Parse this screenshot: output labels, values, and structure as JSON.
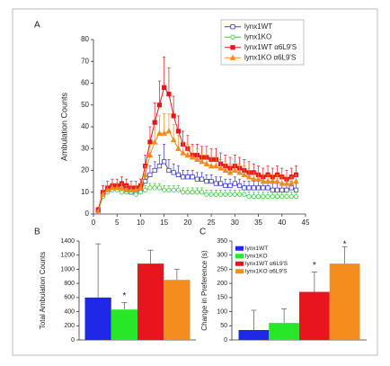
{
  "chart_data": [
    {
      "type": "line",
      "panel": "A",
      "ylabel": "Ambulation Counts",
      "x": [
        1,
        2,
        3,
        4,
        5,
        6,
        7,
        8,
        9,
        10,
        11,
        12,
        13,
        14,
        15,
        16,
        17,
        18,
        19,
        20,
        21,
        22,
        23,
        24,
        25,
        26,
        27,
        28,
        29,
        30,
        31,
        32,
        33,
        34,
        35,
        36,
        37,
        38,
        39,
        40,
        41,
        42,
        43
      ],
      "xlim": [
        0,
        45
      ],
      "xticks": [
        0,
        5,
        10,
        15,
        20,
        25,
        30,
        35,
        40,
        45
      ],
      "ylim": [
        0,
        80
      ],
      "yticks": [
        0,
        10,
        20,
        30,
        40,
        50,
        60,
        70,
        80
      ],
      "legend": "upper right",
      "series": [
        {
          "name": "lynx1WT",
          "color": "#3a3ac8",
          "marker": "square-open",
          "values": [
            1,
            9,
            11,
            12,
            12,
            12,
            11,
            10,
            10,
            11,
            15,
            18,
            20,
            22,
            24,
            20,
            19,
            18,
            17,
            17,
            17,
            16,
            16,
            15,
            15,
            14,
            14,
            13,
            13,
            14,
            13,
            12,
            12,
            12,
            12,
            12,
            12,
            11,
            11,
            11,
            11,
            12,
            11
          ],
          "errors": [
            1,
            2,
            2,
            2,
            2,
            2,
            2,
            2,
            2,
            2,
            3,
            4,
            4,
            5,
            8,
            5,
            4,
            4,
            3,
            3,
            3,
            3,
            3,
            3,
            3,
            3,
            3,
            3,
            3,
            3,
            3,
            3,
            3,
            3,
            3,
            3,
            3,
            3,
            3,
            3,
            3,
            3,
            3
          ]
        },
        {
          "name": "lynx1KO",
          "color": "#3cc83c",
          "marker": "circle-open",
          "values": [
            1,
            8,
            10,
            11,
            11,
            10,
            10,
            10,
            9,
            10,
            11,
            12,
            12,
            12,
            11,
            11,
            11,
            11,
            10,
            10,
            10,
            10,
            10,
            9,
            9,
            9,
            9,
            9,
            9,
            9,
            9,
            9,
            8,
            8,
            8,
            8,
            8,
            8,
            8,
            8,
            8,
            8,
            8
          ],
          "errors": [
            1,
            1,
            1,
            1,
            1,
            1,
            1,
            1,
            1,
            1,
            2,
            2,
            2,
            2,
            2,
            2,
            2,
            2,
            2,
            2,
            2,
            2,
            2,
            2,
            2,
            2,
            2,
            2,
            2,
            2,
            2,
            2,
            2,
            2,
            2,
            2,
            2,
            2,
            2,
            2,
            2,
            2,
            2
          ]
        },
        {
          "name": "lynx1WT α6L9'S",
          "color": "#e8141e",
          "marker": "square-filled",
          "values": [
            2,
            10,
            12,
            13,
            13,
            14,
            13,
            12,
            12,
            13,
            22,
            33,
            42,
            50,
            58,
            55,
            45,
            38,
            32,
            30,
            27,
            27,
            26,
            26,
            25,
            25,
            23,
            22,
            21,
            22,
            21,
            20,
            19,
            19,
            18,
            17,
            18,
            17,
            18,
            17,
            16,
            17,
            18
          ],
          "errors": [
            1,
            3,
            3,
            3,
            3,
            3,
            3,
            3,
            3,
            3,
            5,
            7,
            9,
            11,
            14,
            12,
            9,
            7,
            6,
            6,
            5,
            5,
            5,
            5,
            5,
            5,
            5,
            5,
            5,
            5,
            5,
            5,
            5,
            4,
            4,
            4,
            4,
            4,
            4,
            4,
            4,
            4,
            4
          ]
        },
        {
          "name": "lynx1KO α6L9'S",
          "color": "#f08c1e",
          "marker": "triangle-filled",
          "values": [
            1,
            9,
            11,
            12,
            12,
            12,
            11,
            11,
            11,
            12,
            18,
            27,
            33,
            37,
            37,
            38,
            34,
            30,
            28,
            27,
            26,
            25,
            24,
            23,
            22,
            22,
            21,
            20,
            19,
            20,
            19,
            18,
            17,
            16,
            16,
            15,
            15,
            15,
            15,
            14,
            14,
            14,
            15
          ],
          "errors": [
            1,
            2,
            2,
            2,
            2,
            2,
            2,
            2,
            2,
            2,
            4,
            5,
            7,
            8,
            9,
            8,
            7,
            6,
            5,
            5,
            5,
            5,
            4,
            4,
            4,
            4,
            4,
            4,
            4,
            4,
            4,
            4,
            4,
            3,
            3,
            3,
            3,
            3,
            3,
            3,
            3,
            3,
            3
          ]
        }
      ]
    },
    {
      "type": "bar",
      "panel": "B",
      "ylabel": "Total Ambulation Counts",
      "ylim": [
        0,
        1400
      ],
      "yticks": [
        0,
        200,
        400,
        600,
        800,
        1000,
        1200,
        1400
      ],
      "series": [
        {
          "color": "#1e28e6",
          "values": [
            600
          ],
          "errors": [
            760
          ]
        },
        {
          "color": "#28e628",
          "values": [
            430
          ],
          "errors": [
            100
          ],
          "annotation": "*"
        },
        {
          "color": "#e8141e",
          "values": [
            1080
          ],
          "errors": [
            190
          ]
        },
        {
          "color": "#f58c1e",
          "values": [
            850
          ],
          "errors": [
            150
          ]
        }
      ]
    },
    {
      "type": "bar",
      "panel": "C",
      "ylabel": "Change in Preference (s)",
      "ylim": [
        0,
        350
      ],
      "yticks": [
        0,
        50,
        100,
        150,
        200,
        250,
        300,
        350
      ],
      "legend": "upper left",
      "series": [
        {
          "name": "lynx1WT",
          "color": "#1e28e6",
          "values": [
            35
          ],
          "errors": [
            70
          ]
        },
        {
          "name": "lynx1KO",
          "color": "#28e628",
          "values": [
            60
          ],
          "errors": [
            50
          ]
        },
        {
          "name": "lynx1WT α6L9'S",
          "color": "#e8141e",
          "values": [
            170
          ],
          "errors": [
            70
          ],
          "annotation": "*"
        },
        {
          "name": "lynx1KO α6L9'S",
          "color": "#f58c1e",
          "values": [
            270
          ],
          "errors": [
            60
          ],
          "annotation": "*"
        }
      ]
    }
  ]
}
